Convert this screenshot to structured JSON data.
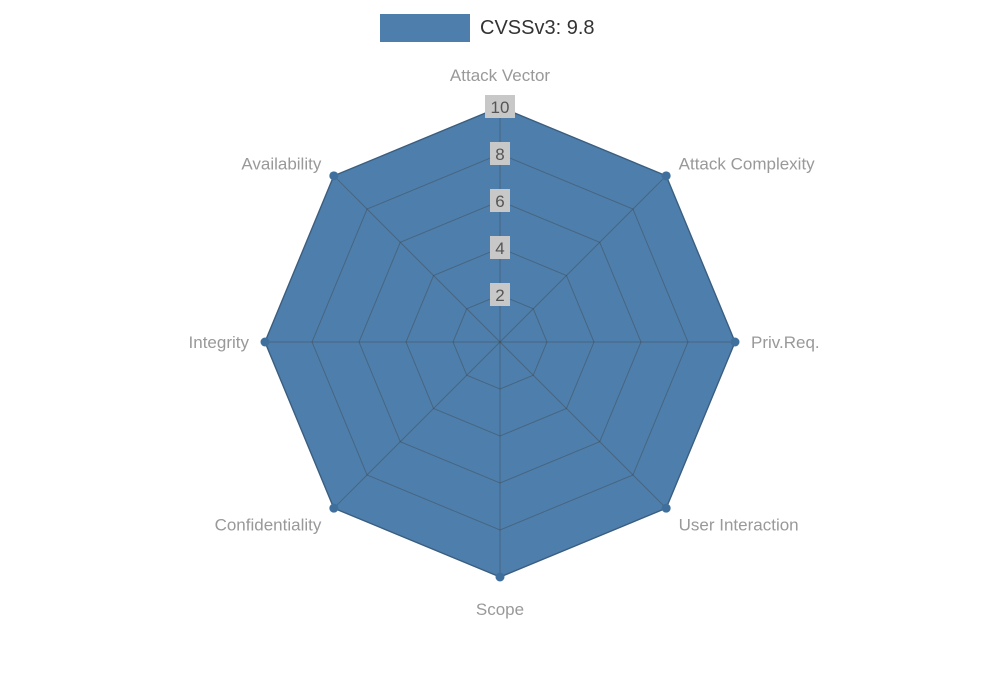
{
  "legend": {
    "label": "CVSSv3: 9.8"
  },
  "chart_data": {
    "type": "radar",
    "title": "",
    "legend_position": "top-center",
    "indicators": [
      "Attack Vector",
      "Attack Complexity",
      "Priv.Req.",
      "User Interaction",
      "Scope",
      "Confidentiality",
      "Integrity",
      "Availability"
    ],
    "max": 10,
    "ticks": [
      2,
      4,
      6,
      8,
      10
    ],
    "grid": true,
    "series": [
      {
        "name": "CVSSv3: 9.8",
        "values": [
          10,
          10,
          10,
          10,
          10,
          10,
          10,
          10
        ],
        "fill_color": "#4e7fac",
        "line_color": "#3f6f9d",
        "marker_color": "#3f6f9d"
      }
    ],
    "colors": {
      "grid_line": "rgba(60,60,60,0.38)",
      "axis_label": "#999999",
      "tick_label_text": "#555555",
      "tick_label_bg": "#c8c8c8",
      "legend_text": "#333333"
    }
  }
}
